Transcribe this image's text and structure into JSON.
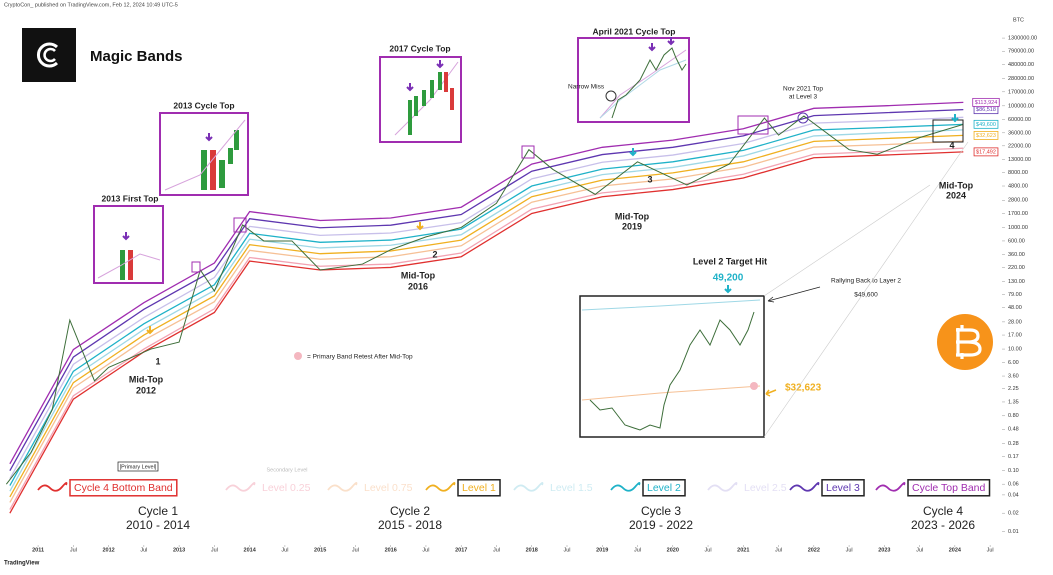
{
  "header": {
    "attribution": "CryptoCon_ published on TradingView.com, Feb 12, 2024 10:49 UTC-5",
    "title": "Magic Bands",
    "footer": "TradingView"
  },
  "chart_data": {
    "type": "line",
    "log_scale_y": true,
    "grid": false,
    "y_axis_label": "BTC",
    "xlim": [
      2010.46,
      2024.64
    ],
    "ylim": [
      0.006,
      3000000
    ],
    "xticks": [
      2011,
      {
        "value": 2011.5,
        "label": "Jul"
      },
      2012,
      {
        "value": 2012.5,
        "label": "Jul"
      },
      2013,
      {
        "value": 2013.5,
        "label": "Jul"
      },
      2014,
      {
        "value": 2014.5,
        "label": "Jul"
      },
      2015,
      {
        "value": 2015.5,
        "label": "Jul"
      },
      2016,
      {
        "value": 2016.5,
        "label": "Jul"
      },
      2017,
      {
        "value": 2017.5,
        "label": "Jul"
      },
      2018,
      {
        "value": 2018.5,
        "label": "Jul"
      },
      2019,
      {
        "value": 2019.5,
        "label": "Jul"
      },
      2020,
      {
        "value": 2020.5,
        "label": "Jul"
      },
      2021,
      {
        "value": 2021.5,
        "label": "Jul"
      },
      2022,
      {
        "value": 2022.5,
        "label": "Jul"
      },
      2023,
      {
        "value": 2023.5,
        "label": "Jul"
      },
      2024,
      {
        "value": 2024.5,
        "label": "Jul"
      }
    ],
    "yticks": [
      {
        "value": 1300000,
        "label": "1300000.00"
      },
      {
        "value": 790000,
        "label": "790000.00"
      },
      {
        "value": 480000,
        "label": "480000.00"
      },
      {
        "value": 280000,
        "label": "280000.00"
      },
      {
        "value": 170000,
        "label": "170000.00"
      },
      {
        "value": 100000,
        "label": "100000.00"
      },
      {
        "value": 60000,
        "label": "60000.00"
      },
      {
        "value": 36000,
        "label": "36000.00"
      },
      {
        "value": 22000,
        "label": "22000.00"
      },
      {
        "value": 13000,
        "label": "13000.00"
      },
      {
        "value": 8000,
        "label": "8000.00"
      },
      {
        "value": 4800,
        "label": "4800.00"
      },
      {
        "value": 2800,
        "label": "2800.00"
      },
      {
        "value": 1700,
        "label": "1700.00"
      },
      {
        "value": 1000,
        "label": "1000.00"
      },
      {
        "value": 600,
        "label": "600.00"
      },
      {
        "value": 360,
        "label": "360.00"
      },
      {
        "value": 220,
        "label": "220.00"
      },
      {
        "value": 130,
        "label": "130.00"
      },
      {
        "value": 79,
        "label": "79.00"
      },
      {
        "value": 48,
        "label": "48.00"
      },
      {
        "value": 28,
        "label": "28.00"
      },
      {
        "value": 17,
        "label": "17.00"
      },
      {
        "value": 10,
        "label": "10.00"
      },
      {
        "value": 6,
        "label": "6.00"
      },
      {
        "value": 3.6,
        "label": "3.60"
      },
      2.25,
      1.35,
      {
        "value": 0.8,
        "label": "0.80"
      },
      0.48,
      0.28,
      0.17,
      {
        "value": 0.1,
        "label": "0.10"
      },
      0.06,
      {
        "value": 0.04,
        "label": "0.04"
      },
      0.02,
      0.01
    ],
    "x": [
      2010.6,
      2011.5,
      2012.5,
      2013.5,
      2014.0,
      2015.0,
      2016.0,
      2017.0,
      2018.0,
      2019.0,
      2020.0,
      2021.0,
      2022.0,
      2023.0,
      2024.12
    ],
    "series": [
      {
        "color": "#3d6e3a",
        "x": [
          2010.55,
          2010.9,
          2011.2,
          2011.45,
          2011.8,
          2012.0,
          2012.6,
          2013.0,
          2013.3,
          2013.5,
          2013.9,
          2014.2,
          2014.6,
          2015.0,
          2015.6,
          2016.0,
          2016.5,
          2017.0,
          2017.5,
          2017.96,
          2018.3,
          2018.9,
          2019.5,
          2020.2,
          2020.8,
          2021.3,
          2021.5,
          2021.86,
          2022.5,
          2022.9,
          2023.5,
          2024.12
        ],
        "values": [
          0.06,
          0.2,
          1,
          30,
          3,
          5,
          10,
          13,
          200,
          90,
          1100,
          600,
          600,
          200,
          250,
          430,
          700,
          1000,
          2500,
          19000,
          9000,
          3500,
          12000,
          5000,
          11000,
          63000,
          33000,
          68000,
          19000,
          16000,
          30000,
          49600
        ]
      },
      {
        "name": "Cycle 4 Bottom Band",
        "color": "#e0302f",
        "boxed": true,
        "box_color": "#e0302f",
        "values": [
          0.02,
          1.5,
          9,
          40,
          280,
          200,
          220,
          330,
          1700,
          3200,
          4200,
          6500,
          14000,
          15500,
          17492
        ],
        "value_labels": [
          null,
          null,
          null,
          null,
          null,
          null,
          null,
          null,
          null,
          null,
          null,
          null,
          null,
          null,
          "$17,492"
        ]
      },
      {
        "name": "Level 0.25",
        "color": "#f2a3b3",
        "boxed": false,
        "values": [
          0.023,
          1.7,
          10,
          46,
          320,
          230,
          250,
          380,
          2000,
          3700,
          4800,
          7500,
          16000,
          17800,
          20100
        ]
      },
      {
        "name": "Level 0.75",
        "color": "#f6c196",
        "boxed": false,
        "values": [
          0.03,
          2.3,
          14,
          60,
          420,
          300,
          330,
          500,
          2600,
          4800,
          6300,
          9800,
          21000,
          23000,
          26200
        ]
      },
      {
        "name": "Level 1",
        "color": "#f0b020",
        "boxed": true,
        "box_color": "#222222",
        "values": [
          0.037,
          2.8,
          17,
          75,
          520,
          370,
          410,
          620,
          3200,
          6000,
          7900,
          12000,
          26000,
          29000,
          32623
        ],
        "value_labels": [
          null,
          null,
          null,
          null,
          null,
          null,
          null,
          null,
          null,
          null,
          null,
          null,
          null,
          null,
          "$32,623"
        ]
      },
      {
        "name": "Level 1.5",
        "color": "#9fd8e6",
        "boxed": false,
        "values": [
          0.046,
          3.5,
          21,
          92,
          640,
          460,
          510,
          760,
          3900,
          7400,
          9700,
          15000,
          32000,
          36000,
          40200
        ]
      },
      {
        "name": "Level 2",
        "color": "#1fb2c8",
        "boxed": true,
        "box_color": "#222222",
        "values": [
          0.057,
          4.3,
          26,
          114,
          800,
          570,
          620,
          940,
          4800,
          9100,
          12000,
          18500,
          40000,
          44000,
          49600
        ],
        "value_labels": [
          null,
          null,
          null,
          null,
          null,
          null,
          null,
          null,
          null,
          null,
          null,
          null,
          null,
          null,
          "$49,600"
        ]
      },
      {
        "name": "Level 2.5",
        "color": "#c8c0ea",
        "boxed": false,
        "values": [
          0.074,
          5.6,
          33,
          150,
          1040,
          740,
          810,
          1200,
          6300,
          11800,
          15500,
          24000,
          52000,
          57000,
          64700
        ]
      },
      {
        "name": "Level 3",
        "color": "#5e37b0",
        "boxed": true,
        "box_color": "#222222",
        "values": [
          0.1,
          7.4,
          45,
          200,
          1390,
          990,
          1090,
          1630,
          8400,
          15800,
          20800,
          32000,
          69000,
          77000,
          86518
        ],
        "value_labels": [
          null,
          null,
          null,
          null,
          null,
          null,
          null,
          null,
          null,
          null,
          null,
          null,
          null,
          null,
          "$86,518"
        ]
      },
      {
        "name": "Cycle Top Band",
        "color": "#a02db0",
        "boxed": true,
        "box_color": "#222222",
        "values": [
          0.13,
          9.8,
          58,
          260,
          1820,
          1300,
          1430,
          2150,
          11000,
          20800,
          27300,
          42000,
          91000,
          100000,
          113924
        ],
        "value_labels": [
          null,
          null,
          null,
          null,
          null,
          null,
          null,
          null,
          null,
          null,
          null,
          null,
          null,
          null,
          "$113,924"
        ]
      }
    ],
    "legend_notes": {
      "primary": "[Primary Level]",
      "secondary": "Secondary Level"
    },
    "cycles": [
      {
        "name": "Cycle 1",
        "years": "2010 - 2014"
      },
      {
        "name": "Cycle 2",
        "years": "2015 - 2018"
      },
      {
        "name": "Cycle 3",
        "years": "2019 - 2022"
      },
      {
        "name": "Cycle 4",
        "years": "2023 - 2026"
      }
    ],
    "annotations": {
      "first_top_2013": "2013 First Top",
      "cycle_top_2013": "2013 Cycle Top",
      "cycle_top_2017": "2017 Cycle Top",
      "cycle_top_2021": "April 2021 Cycle Top",
      "narrow_miss": "Narrow Miss",
      "nov_2021": [
        "Nov 2021 Top",
        "at Level 3"
      ],
      "mid_tops": [
        {
          "number": "1",
          "label": "Mid-Top",
          "year": "2012"
        },
        {
          "number": "2",
          "label": "Mid-Top",
          "year": "2016"
        },
        {
          "number": "3",
          "label": "Mid-Top",
          "year": "2019"
        },
        {
          "number": "4",
          "label": "Mid-Top",
          "year": "2024"
        }
      ],
      "retest_note": "= Primary Band Retest After Mid-Top",
      "target_title": "Level 2 Target Hit",
      "target_value": "49,200",
      "rally_note": "Rallying Back to Layer 2",
      "rally_value": "$49,600",
      "inset_level1": "$32,623"
    }
  }
}
